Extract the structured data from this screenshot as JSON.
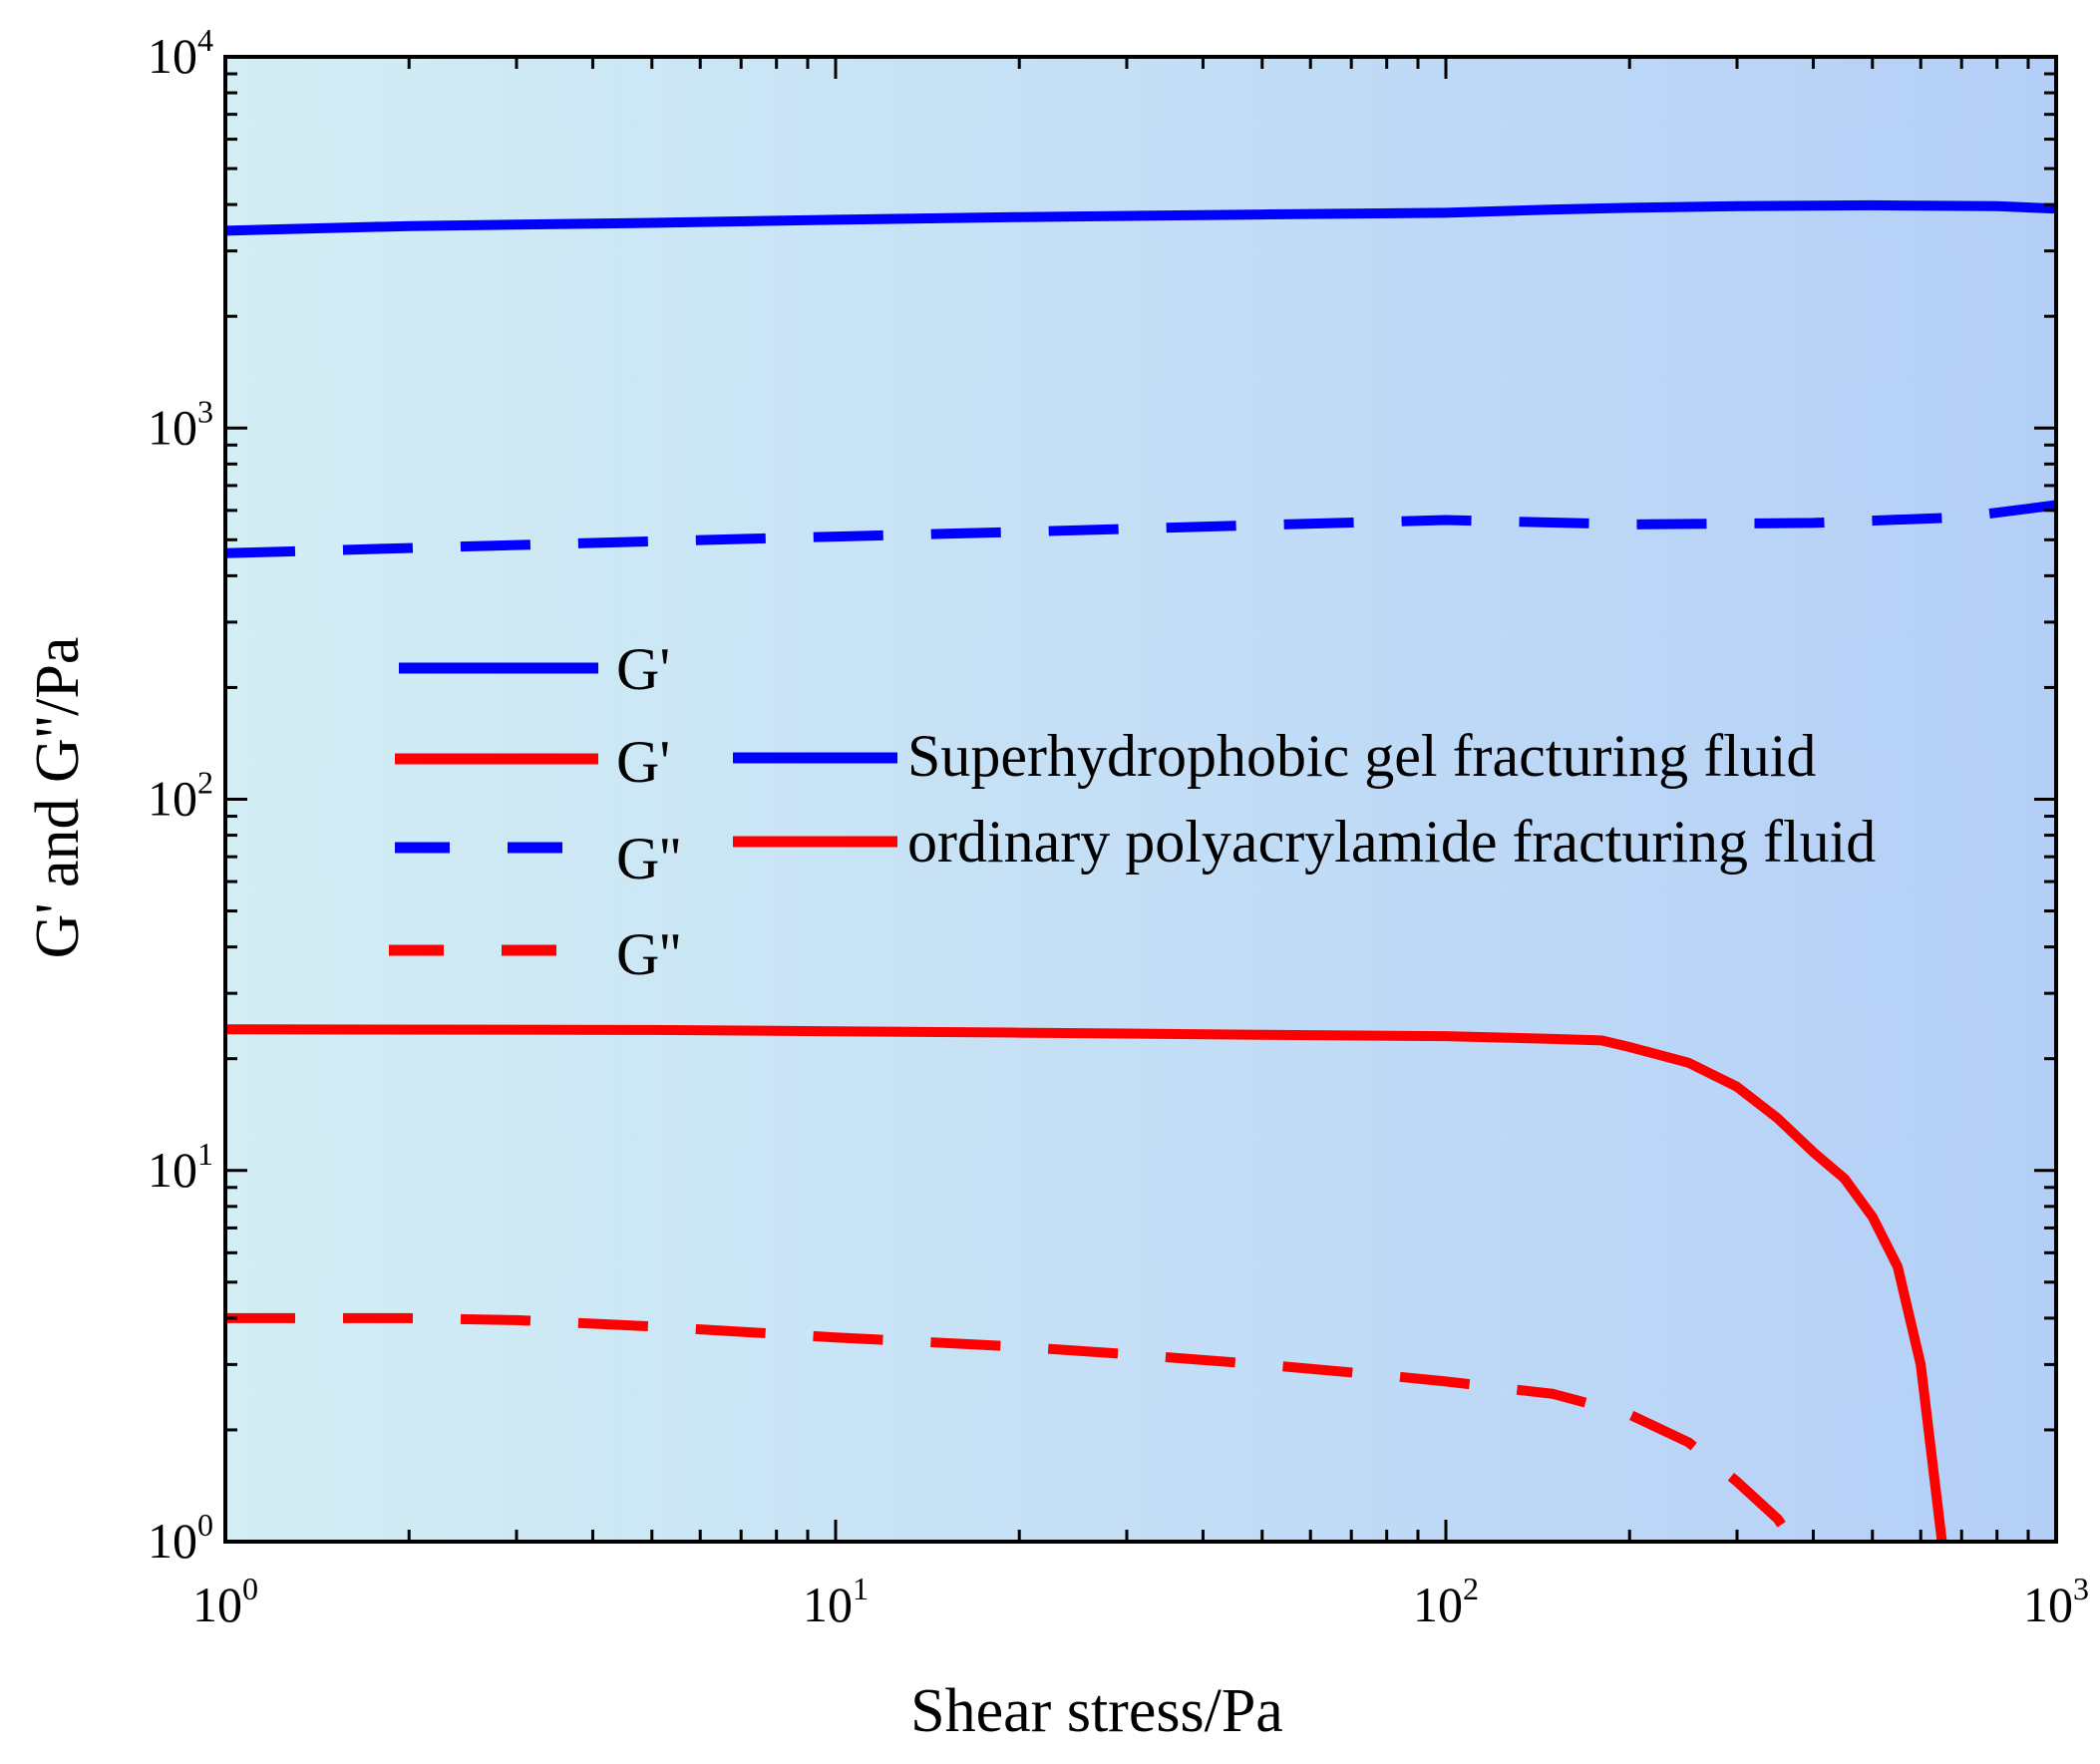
{
  "chart_data": {
    "type": "line",
    "x_scale": "log",
    "y_scale": "log",
    "xlabel": "Shear stress/Pa",
    "ylabel": "G' and G''/Pa",
    "xlim": [
      1,
      1000
    ],
    "ylim": [
      1,
      10000
    ],
    "x_ticks": [
      {
        "base": "10",
        "exp": "0",
        "value": 1
      },
      {
        "base": "10",
        "exp": "1",
        "value": 10
      },
      {
        "base": "10",
        "exp": "2",
        "value": 100
      },
      {
        "base": "10",
        "exp": "3",
        "value": 1000
      }
    ],
    "y_ticks": [
      {
        "base": "10",
        "exp": "0",
        "value": 1
      },
      {
        "base": "10",
        "exp": "1",
        "value": 10
      },
      {
        "base": "10",
        "exp": "2",
        "value": 100
      },
      {
        "base": "10",
        "exp": "3",
        "value": 1000
      },
      {
        "base": "10",
        "exp": "4",
        "value": 10000
      }
    ],
    "background_gradient": [
      "#d3eef4",
      "#b4cff7"
    ],
    "series": [
      {
        "name": "Superhydrophobic gel fracturing fluid G'",
        "fluid": "Superhydrophobic gel fracturing fluid",
        "modulus": "G'",
        "color": "#0000ff",
        "dash": "solid",
        "x": [
          1,
          2,
          5,
          10,
          20,
          50,
          100,
          150,
          200,
          300,
          500,
          800,
          1000
        ],
        "y": [
          3400,
          3500,
          3570,
          3640,
          3700,
          3760,
          3800,
          3880,
          3920,
          3960,
          3980,
          3960,
          3900
        ]
      },
      {
        "name": "Superhydrophobic gel fracturing fluid G''",
        "fluid": "Superhydrophobic gel fracturing fluid",
        "modulus": "G''",
        "color": "#0000ff",
        "dash": "dashed",
        "x": [
          1,
          2,
          5,
          10,
          20,
          50,
          100,
          200,
          400,
          700,
          1000
        ],
        "y": [
          460,
          475,
          495,
          510,
          525,
          548,
          565,
          550,
          555,
          575,
          620
        ]
      },
      {
        "name": "ordinary polyacrylamide fracturing fluid G'",
        "fluid": "ordinary polyacrylamide fracturing fluid",
        "modulus": "G'",
        "color": "#ff0000",
        "dash": "solid",
        "x": [
          1,
          5,
          10,
          20,
          50,
          100,
          150,
          180,
          200,
          250,
          300,
          350,
          400,
          450,
          500,
          550,
          600,
          650
        ],
        "y": [
          24,
          23.9,
          23.7,
          23.5,
          23.2,
          23,
          22.6,
          22.4,
          21.5,
          19.5,
          16.8,
          13.8,
          11.2,
          9.5,
          7.5,
          5.5,
          3,
          1
        ]
      },
      {
        "name": "ordinary polyacrylamide fracturing fluid G''",
        "fluid": "ordinary polyacrylamide fracturing fluid",
        "modulus": "G''",
        "color": "#ff0000",
        "dash": "dashed",
        "x": [
          1,
          2,
          3,
          5,
          10,
          20,
          30,
          50,
          80,
          100,
          150,
          200,
          250,
          300,
          350,
          370
        ],
        "y": [
          4,
          4,
          3.95,
          3.8,
          3.55,
          3.35,
          3.2,
          3,
          2.8,
          2.7,
          2.5,
          2.2,
          1.85,
          1.45,
          1.15,
          1
        ]
      }
    ],
    "legend": {
      "placement": "center-left",
      "entries": [
        {
          "label": "G'",
          "color": "#0000ff",
          "dash": "solid"
        },
        {
          "label": "G'",
          "color": "#ff0000",
          "dash": "solid"
        },
        {
          "label": "G''",
          "color": "#0000ff",
          "dash": "dashed"
        },
        {
          "label": "G''",
          "color": "#ff0000",
          "dash": "dashed"
        }
      ],
      "fluid_entries": [
        {
          "label": "Superhydrophobic gel fracturing fluid",
          "color": "#0000ff"
        },
        {
          "label": "ordinary polyacrylamide fracturing fluid",
          "color": "#ff0000"
        }
      ]
    }
  }
}
